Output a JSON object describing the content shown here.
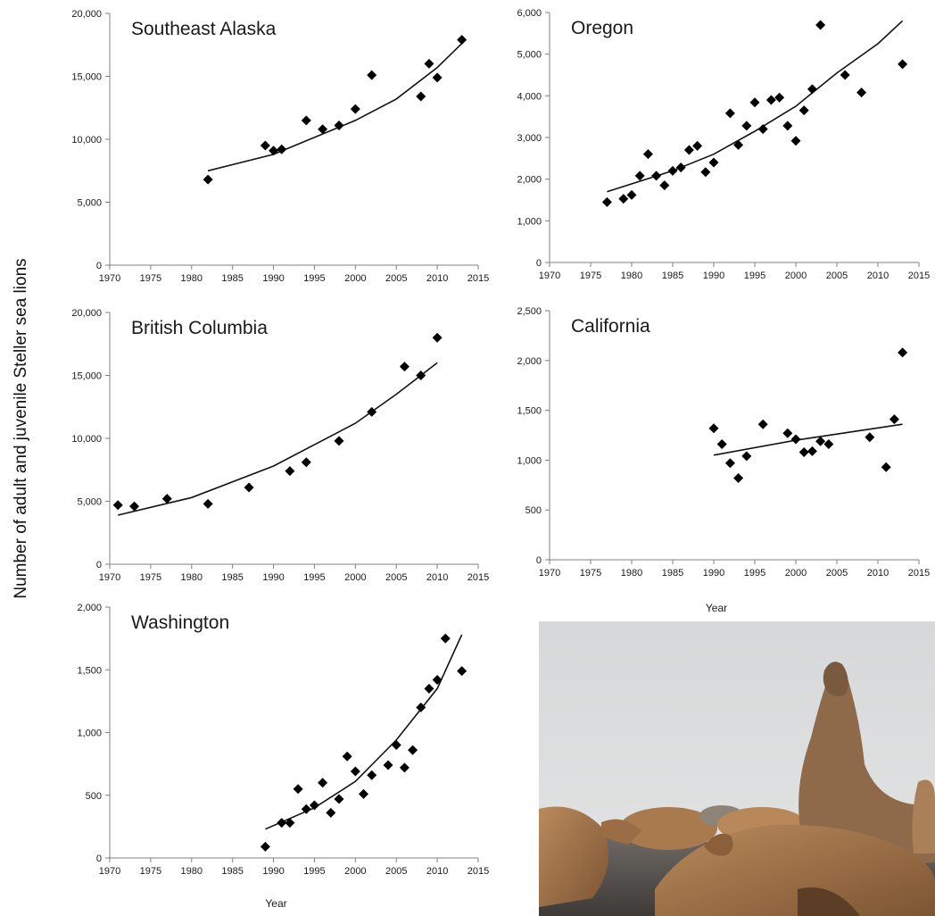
{
  "figure": {
    "y_axis_label": "Number of adult and juvenile Steller sea lions"
  },
  "photo": {
    "subject": "Steller sea lions resting on rocks",
    "sky_color": "#d9dbdc",
    "animal_color": "#a8764a"
  },
  "colors": {
    "points": "#000000",
    "trend": "#111111",
    "axis": "#808080",
    "text": "#1a1a1a"
  },
  "chart_data": [
    {
      "type": "scatter",
      "title": "Southeast Alaska",
      "xlabel": "",
      "ylabel": "",
      "xlim": [
        1970,
        2015
      ],
      "ylim": [
        0,
        20000
      ],
      "xticks": [
        "1970",
        "1975",
        "1980",
        "1985",
        "1990",
        "1995",
        "2000",
        "2005",
        "2010",
        "2015"
      ],
      "yticks": [
        "0",
        "5,000",
        "10,000",
        "15,000",
        "20,000"
      ],
      "points": [
        [
          1982,
          6800
        ],
        [
          1989,
          9500
        ],
        [
          1990,
          9100
        ],
        [
          1991,
          9200
        ],
        [
          1994,
          11500
        ],
        [
          1996,
          10800
        ],
        [
          1998,
          11100
        ],
        [
          2000,
          12400
        ],
        [
          2002,
          15100
        ],
        [
          2008,
          13400
        ],
        [
          2009,
          16000
        ],
        [
          2010,
          14900
        ],
        [
          2013,
          17900
        ]
      ],
      "trend": [
        [
          1982,
          7500
        ],
        [
          1990,
          8800
        ],
        [
          2000,
          11500
        ],
        [
          2005,
          13200
        ],
        [
          2010,
          15700
        ],
        [
          2013,
          17600
        ]
      ]
    },
    {
      "type": "scatter",
      "title": "Oregon",
      "xlabel": "",
      "ylabel": "",
      "xlim": [
        1970,
        2015
      ],
      "ylim": [
        0,
        6000
      ],
      "xticks": [
        "1970",
        "1975",
        "1980",
        "1985",
        "1990",
        "1995",
        "2000",
        "2005",
        "2010",
        "2015"
      ],
      "yticks": [
        "0",
        "1,000",
        "2,000",
        "3,000",
        "4,000",
        "5,000",
        "6,000"
      ],
      "points": [
        [
          1977,
          1450
        ],
        [
          1979,
          1530
        ],
        [
          1980,
          1620
        ],
        [
          1981,
          2080
        ],
        [
          1982,
          2600
        ],
        [
          1983,
          2080
        ],
        [
          1984,
          1850
        ],
        [
          1985,
          2200
        ],
        [
          1986,
          2280
        ],
        [
          1987,
          2700
        ],
        [
          1988,
          2800
        ],
        [
          1989,
          2170
        ],
        [
          1990,
          2400
        ],
        [
          1992,
          3580
        ],
        [
          1993,
          2820
        ],
        [
          1994,
          3280
        ],
        [
          1995,
          3840
        ],
        [
          1996,
          3200
        ],
        [
          1997,
          3900
        ],
        [
          1998,
          3960
        ],
        [
          1999,
          3280
        ],
        [
          2000,
          2920
        ],
        [
          2001,
          3650
        ],
        [
          2002,
          4160
        ],
        [
          2003,
          5700
        ],
        [
          2006,
          4500
        ],
        [
          2008,
          4080
        ],
        [
          2013,
          4760
        ]
      ],
      "trend": [
        [
          1977,
          1700
        ],
        [
          1985,
          2200
        ],
        [
          1990,
          2600
        ],
        [
          1995,
          3150
        ],
        [
          2000,
          3750
        ],
        [
          2005,
          4550
        ],
        [
          2010,
          5250
        ],
        [
          2013,
          5800
        ]
      ]
    },
    {
      "type": "scatter",
      "title": "British Columbia",
      "xlabel": "",
      "ylabel": "",
      "xlim": [
        1970,
        2015
      ],
      "ylim": [
        0,
        20000
      ],
      "xticks": [
        "1970",
        "1975",
        "1980",
        "1985",
        "1990",
        "1995",
        "2000",
        "2005",
        "2010",
        "2015"
      ],
      "yticks": [
        "0",
        "5,000",
        "10,000",
        "15,000",
        "20,000"
      ],
      "points": [
        [
          1971,
          4700
        ],
        [
          1973,
          4600
        ],
        [
          1977,
          5200
        ],
        [
          1982,
          4800
        ],
        [
          1987,
          6100
        ],
        [
          1992,
          7400
        ],
        [
          1994,
          8100
        ],
        [
          1998,
          9800
        ],
        [
          2002,
          12100
        ],
        [
          2006,
          15700
        ],
        [
          2008,
          15000
        ],
        [
          2010,
          18000
        ]
      ],
      "trend": [
        [
          1971,
          3900
        ],
        [
          1980,
          5300
        ],
        [
          1990,
          7800
        ],
        [
          2000,
          11200
        ],
        [
          2005,
          13500
        ],
        [
          2010,
          16000
        ]
      ]
    },
    {
      "type": "scatter",
      "title": "California",
      "xlabel": "Year",
      "ylabel": "",
      "xlim": [
        1970,
        2015
      ],
      "ylim": [
        0,
        2500
      ],
      "xticks": [
        "1970",
        "1975",
        "1980",
        "1985",
        "1990",
        "1995",
        "2000",
        "2005",
        "2010",
        "2015"
      ],
      "yticks": [
        "0",
        "500",
        "1,000",
        "1,500",
        "2,000",
        "2,500"
      ],
      "points": [
        [
          1990,
          1320
        ],
        [
          1991,
          1160
        ],
        [
          1992,
          970
        ],
        [
          1993,
          820
        ],
        [
          1994,
          1040
        ],
        [
          1996,
          1360
        ],
        [
          1999,
          1270
        ],
        [
          2000,
          1210
        ],
        [
          2001,
          1080
        ],
        [
          2002,
          1090
        ],
        [
          2003,
          1190
        ],
        [
          2004,
          1160
        ],
        [
          2009,
          1230
        ],
        [
          2011,
          930
        ],
        [
          2012,
          1410
        ],
        [
          2013,
          2080
        ]
      ],
      "trend": [
        [
          1990,
          1050
        ],
        [
          2000,
          1200
        ],
        [
          2013,
          1360
        ]
      ]
    },
    {
      "type": "scatter",
      "title": "Washington",
      "xlabel": "Year",
      "ylabel": "",
      "xlim": [
        1970,
        2015
      ],
      "ylim": [
        0,
        2000
      ],
      "xticks": [
        "1970",
        "1975",
        "1980",
        "1985",
        "1990",
        "1995",
        "2000",
        "2005",
        "2010",
        "2015"
      ],
      "yticks": [
        "0",
        "500",
        "1,000",
        "1,500",
        "2,000"
      ],
      "points": [
        [
          1989,
          90
        ],
        [
          1991,
          280
        ],
        [
          1992,
          280
        ],
        [
          1993,
          550
        ],
        [
          1994,
          390
        ],
        [
          1995,
          420
        ],
        [
          1996,
          600
        ],
        [
          1997,
          360
        ],
        [
          1998,
          470
        ],
        [
          1999,
          810
        ],
        [
          2000,
          690
        ],
        [
          2001,
          510
        ],
        [
          2002,
          660
        ],
        [
          2004,
          740
        ],
        [
          2005,
          900
        ],
        [
          2006,
          720
        ],
        [
          2007,
          860
        ],
        [
          2008,
          1200
        ],
        [
          2009,
          1350
        ],
        [
          2010,
          1420
        ],
        [
          2011,
          1750
        ],
        [
          2013,
          1490
        ]
      ],
      "trend": [
        [
          1989,
          230
        ],
        [
          1995,
          400
        ],
        [
          2000,
          610
        ],
        [
          2005,
          940
        ],
        [
          2010,
          1350
        ],
        [
          2013,
          1780
        ]
      ]
    }
  ]
}
